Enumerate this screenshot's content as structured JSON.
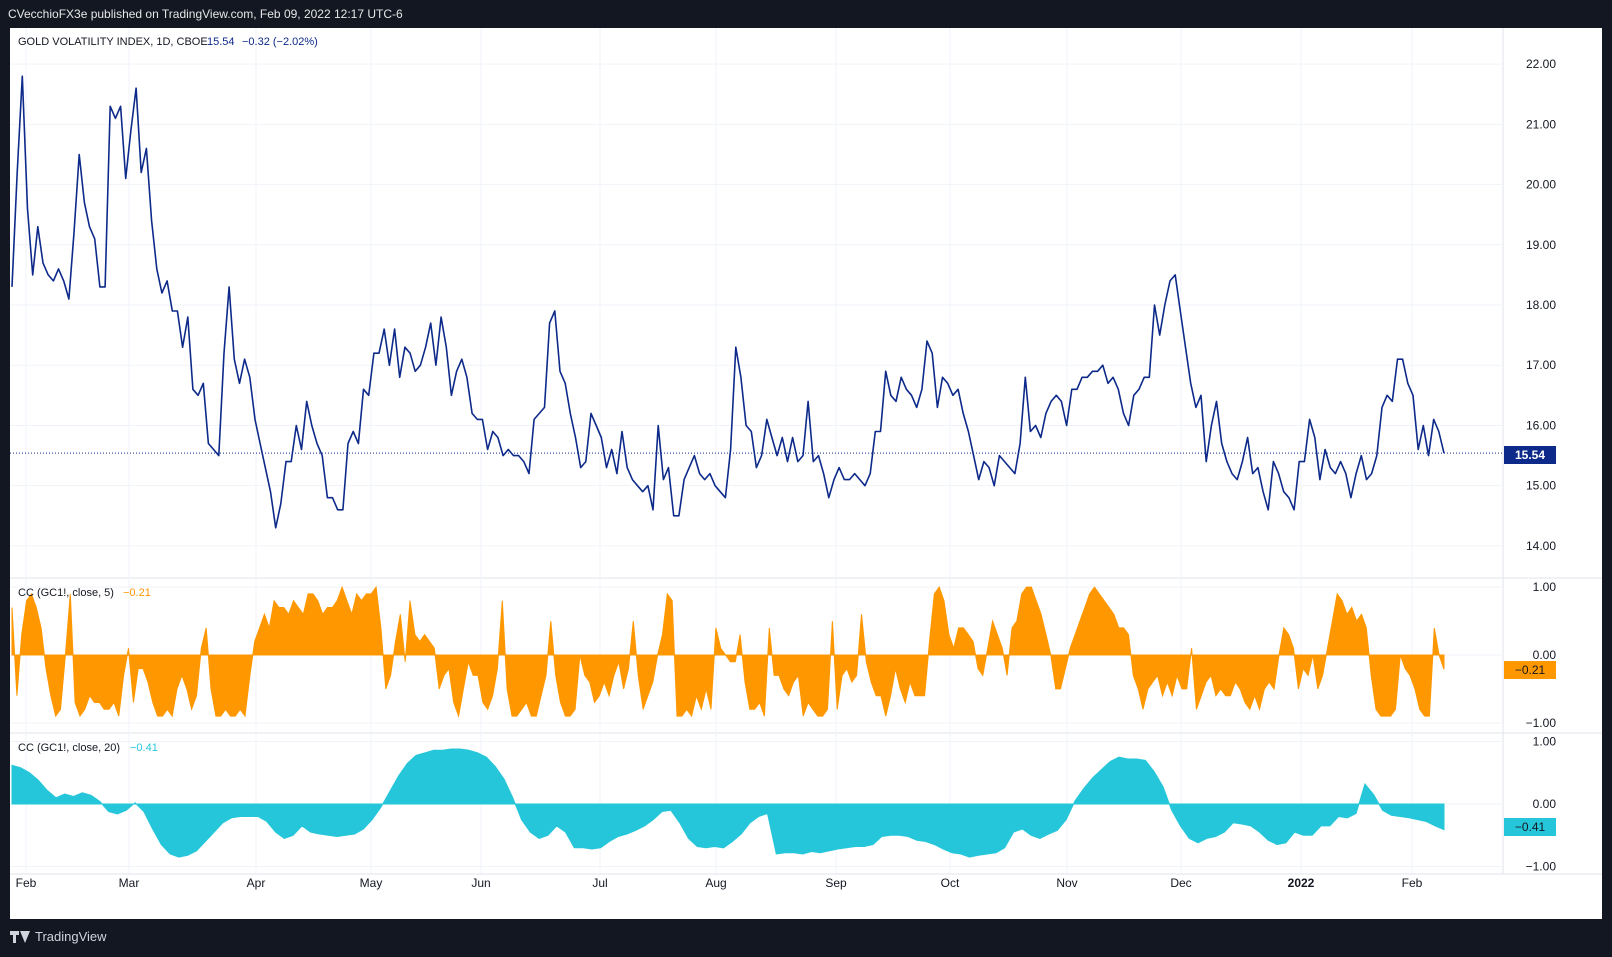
{
  "header": {
    "published_text": "CVecchioFX3e published on TradingView.com, Feb 09, 2022 12:17 UTC-6"
  },
  "footer": {
    "brand_label": "TradingView"
  },
  "colors": {
    "background": "#131722",
    "main_line": "#0d2a8a",
    "cc5": "#ff9800",
    "cc20": "#26c6da",
    "grid": "#f0f3fa",
    "text": "#131722"
  },
  "chart_data": [
    {
      "type": "line",
      "legend": {
        "symbol": "GOLD VOLATILITY INDEX, 1D, CBOE",
        "last": "15.54",
        "change": "−0.32 (−2.02%)"
      },
      "last_value_label": "15.54",
      "y_tick_labels": [
        "22.00",
        "21.00",
        "20.00",
        "19.00",
        "18.00",
        "17.00",
        "16.00",
        "15.00",
        "14.00"
      ],
      "ylim": [
        13.5,
        22.6
      ],
      "values": [
        18.3,
        20.2,
        21.8,
        19.6,
        18.5,
        19.3,
        18.7,
        18.5,
        18.4,
        18.6,
        18.4,
        18.1,
        19.2,
        20.5,
        19.7,
        19.3,
        19.1,
        18.3,
        18.3,
        21.3,
        21.1,
        21.3,
        20.1,
        20.9,
        21.6,
        20.2,
        20.6,
        19.4,
        18.6,
        18.2,
        18.4,
        17.9,
        17.9,
        17.3,
        17.8,
        16.6,
        16.5,
        16.7,
        15.7,
        15.6,
        15.5,
        17.2,
        18.3,
        17.1,
        16.7,
        17.1,
        16.8,
        16.1,
        15.7,
        15.3,
        14.9,
        14.3,
        14.7,
        15.4,
        15.4,
        16.0,
        15.6,
        16.4,
        16.0,
        15.7,
        15.5,
        14.8,
        14.8,
        14.6,
        14.6,
        15.7,
        15.9,
        15.7,
        16.6,
        16.5,
        17.2,
        17.2,
        17.6,
        17.0,
        17.6,
        16.8,
        17.3,
        17.2,
        16.9,
        17.0,
        17.3,
        17.7,
        17.0,
        17.8,
        17.3,
        16.5,
        16.9,
        17.1,
        16.8,
        16.2,
        16.1,
        16.1,
        15.6,
        15.9,
        15.8,
        15.5,
        15.6,
        15.5,
        15.5,
        15.4,
        15.2,
        16.1,
        16.2,
        16.3,
        17.7,
        17.9,
        16.9,
        16.7,
        16.2,
        15.8,
        15.3,
        15.4,
        16.2,
        16.0,
        15.8,
        15.3,
        15.6,
        15.2,
        15.9,
        15.3,
        15.1,
        15.0,
        14.9,
        15.0,
        14.6,
        16.0,
        15.1,
        15.3,
        14.5,
        14.5,
        15.1,
        15.3,
        15.5,
        15.2,
        15.1,
        15.2,
        15.0,
        14.9,
        14.8,
        15.6,
        17.3,
        16.8,
        16.0,
        15.9,
        15.3,
        15.5,
        16.1,
        15.8,
        15.5,
        15.8,
        15.4,
        15.8,
        15.4,
        15.5,
        16.4,
        15.4,
        15.5,
        15.2,
        14.8,
        15.1,
        15.3,
        15.1,
        15.1,
        15.2,
        15.1,
        15.0,
        15.2,
        15.9,
        15.9,
        16.9,
        16.5,
        16.4,
        16.8,
        16.6,
        16.5,
        16.3,
        16.6,
        17.4,
        17.2,
        16.3,
        16.8,
        16.7,
        16.5,
        16.6,
        16.2,
        15.9,
        15.5,
        15.1,
        15.4,
        15.3,
        15.0,
        15.5,
        15.4,
        15.3,
        15.2,
        15.7,
        16.8,
        15.9,
        16.0,
        15.8,
        16.2,
        16.4,
        16.5,
        16.4,
        16.0,
        16.6,
        16.6,
        16.8,
        16.8,
        16.9,
        16.9,
        17.0,
        16.7,
        16.8,
        16.6,
        16.2,
        16.0,
        16.5,
        16.6,
        16.8,
        16.8,
        18.0,
        17.5,
        18.0,
        18.4,
        18.5,
        17.9,
        17.3,
        16.7,
        16.3,
        16.5,
        15.4,
        16.0,
        16.4,
        15.7,
        15.4,
        15.2,
        15.1,
        15.4,
        15.8,
        15.2,
        15.3,
        14.9,
        14.6,
        15.4,
        15.2,
        14.9,
        14.8,
        14.6,
        15.4,
        15.4,
        16.1,
        15.8,
        15.1,
        15.6,
        15.3,
        15.2,
        15.4,
        15.2,
        14.8,
        15.2,
        15.5,
        15.1,
        15.2,
        15.5,
        16.3,
        16.5,
        16.4,
        17.1,
        17.1,
        16.7,
        16.5,
        15.6,
        16.0,
        15.5,
        16.1,
        15.9,
        15.54
      ]
    },
    {
      "type": "area",
      "legend": {
        "label": "CC (GC1!, close, 5)",
        "last": "−0.21"
      },
      "last_value_label": "−0.21",
      "y_tick_labels": [
        "1.00",
        "0.00",
        "−1.00"
      ],
      "ylim": [
        -1.12,
        1.12
      ],
      "values": [
        0.7,
        -0.6,
        0.3,
        0.8,
        0.9,
        0.7,
        0.4,
        -0.2,
        -0.6,
        -0.9,
        -0.8,
        0.0,
        0.9,
        -0.7,
        -0.9,
        -0.8,
        -0.6,
        -0.7,
        -0.7,
        -0.8,
        -0.8,
        -0.7,
        -0.9,
        -0.3,
        0.1,
        -0.7,
        -0.2,
        -0.2,
        -0.4,
        -0.7,
        -0.9,
        -0.9,
        -0.8,
        -0.9,
        -0.5,
        -0.3,
        -0.5,
        -0.8,
        -0.6,
        0.1,
        0.4,
        -0.5,
        -0.9,
        -0.9,
        -0.8,
        -0.9,
        -0.9,
        -0.8,
        -0.9,
        -0.3,
        0.2,
        0.4,
        0.6,
        0.4,
        0.8,
        0.7,
        0.7,
        0.6,
        0.8,
        0.7,
        0.6,
        0.9,
        0.9,
        0.8,
        0.6,
        0.7,
        0.7,
        0.8,
        1.0,
        0.8,
        0.6,
        0.9,
        0.8,
        0.9,
        0.9,
        1.0,
        0.4,
        -0.5,
        -0.3,
        0.2,
        0.6,
        -0.1,
        0.8,
        0.3,
        0.2,
        0.3,
        0.2,
        0.1,
        -0.5,
        -0.3,
        -0.2,
        -0.7,
        -0.9,
        -0.5,
        -0.1,
        -0.3,
        -0.3,
        -0.7,
        -0.8,
        -0.6,
        -0.2,
        0.8,
        -0.5,
        -0.9,
        -0.9,
        -0.8,
        -0.7,
        -0.9,
        -0.9,
        -0.6,
        -0.3,
        0.5,
        -0.3,
        -0.7,
        -0.9,
        -0.9,
        -0.8,
        0.0,
        -0.3,
        -0.4,
        -0.7,
        -0.6,
        -0.4,
        -0.6,
        -0.3,
        -0.1,
        -0.5,
        -0.2,
        0.5,
        -0.3,
        -0.8,
        -0.6,
        -0.4,
        0.0,
        0.3,
        0.9,
        0.8,
        -0.9,
        -0.9,
        -0.8,
        -0.9,
        -0.6,
        -0.8,
        -0.5,
        -0.8,
        0.4,
        0.1,
        0.0,
        -0.1,
        -0.1,
        0.3,
        -0.4,
        -0.8,
        -0.8,
        -0.7,
        -0.9,
        0.4,
        -0.3,
        -0.3,
        -0.5,
        -0.6,
        -0.4,
        -0.3,
        -0.9,
        -0.7,
        -0.8,
        -0.9,
        -0.9,
        -0.8,
        0.5,
        -0.8,
        -0.3,
        -0.2,
        -0.4,
        -0.3,
        0.6,
        -0.1,
        -0.4,
        -0.6,
        -0.6,
        -0.9,
        -0.6,
        -0.2,
        -0.5,
        -0.7,
        -0.4,
        -0.6,
        -0.6,
        -0.6,
        0.2,
        0.9,
        1.0,
        0.8,
        0.3,
        0.1,
        0.4,
        0.4,
        0.3,
        0.2,
        -0.2,
        -0.3,
        0.1,
        0.5,
        0.3,
        0.1,
        -0.3,
        0.4,
        0.5,
        0.9,
        1.0,
        1.0,
        0.8,
        0.6,
        0.3,
        0.0,
        -0.5,
        -0.5,
        -0.2,
        0.1,
        0.3,
        0.5,
        0.7,
        0.9,
        1.0,
        0.9,
        0.8,
        0.7,
        0.6,
        0.4,
        0.4,
        0.3,
        -0.3,
        -0.5,
        -0.8,
        -0.5,
        -0.4,
        -0.3,
        -0.6,
        -0.4,
        -0.6,
        -0.3,
        -0.5,
        -0.5,
        0.1,
        -0.8,
        -0.6,
        -0.4,
        -0.3,
        -0.6,
        -0.5,
        -0.6,
        -0.6,
        -0.4,
        -0.5,
        -0.7,
        -0.8,
        -0.6,
        -0.8,
        -0.5,
        -0.4,
        -0.5,
        0.0,
        0.4,
        0.3,
        0.1,
        -0.5,
        -0.2,
        -0.3,
        0.0,
        -0.5,
        -0.3,
        0.1,
        0.5,
        0.9,
        0.8,
        0.6,
        0.7,
        0.5,
        0.6,
        0.4,
        -0.3,
        -0.8,
        -0.9,
        -0.9,
        -0.9,
        -0.8,
        0.0,
        -0.2,
        -0.3,
        -0.5,
        -0.8,
        -0.9,
        -0.9,
        0.4,
        0.0,
        -0.21
      ]
    },
    {
      "type": "area",
      "legend": {
        "label": "CC (GC1!, close, 20)",
        "last": "−0.41"
      },
      "last_value_label": "−0.41",
      "y_tick_labels": [
        "1.00",
        "0.00",
        "−1.00"
      ],
      "ylim": [
        -1.12,
        1.12
      ],
      "values": [
        0.62,
        0.58,
        0.5,
        0.38,
        0.22,
        0.1,
        0.16,
        0.12,
        0.18,
        0.14,
        0.04,
        -0.12,
        -0.16,
        -0.1,
        0.02,
        -0.12,
        -0.4,
        -0.65,
        -0.8,
        -0.85,
        -0.82,
        -0.75,
        -0.6,
        -0.45,
        -0.3,
        -0.22,
        -0.2,
        -0.2,
        -0.2,
        -0.28,
        -0.45,
        -0.55,
        -0.5,
        -0.35,
        -0.45,
        -0.48,
        -0.5,
        -0.52,
        -0.5,
        -0.48,
        -0.4,
        -0.25,
        -0.05,
        0.2,
        0.45,
        0.65,
        0.78,
        0.82,
        0.86,
        0.86,
        0.88,
        0.88,
        0.86,
        0.82,
        0.75,
        0.6,
        0.4,
        0.1,
        -0.25,
        -0.45,
        -0.55,
        -0.5,
        -0.35,
        -0.45,
        -0.7,
        -0.7,
        -0.72,
        -0.7,
        -0.6,
        -0.52,
        -0.48,
        -0.42,
        -0.35,
        -0.25,
        -0.12,
        -0.1,
        -0.3,
        -0.55,
        -0.68,
        -0.7,
        -0.68,
        -0.7,
        -0.6,
        -0.48,
        -0.3,
        -0.2,
        -0.15,
        -0.8,
        -0.78,
        -0.78,
        -0.8,
        -0.76,
        -0.78,
        -0.75,
        -0.72,
        -0.7,
        -0.68,
        -0.68,
        -0.65,
        -0.52,
        -0.5,
        -0.5,
        -0.52,
        -0.58,
        -0.6,
        -0.65,
        -0.72,
        -0.78,
        -0.8,
        -0.85,
        -0.82,
        -0.8,
        -0.78,
        -0.7,
        -0.45,
        -0.4,
        -0.5,
        -0.55,
        -0.48,
        -0.42,
        -0.25,
        0.05,
        0.25,
        0.42,
        0.55,
        0.68,
        0.75,
        0.72,
        0.72,
        0.7,
        0.52,
        0.28,
        -0.1,
        -0.35,
        -0.55,
        -0.62,
        -0.55,
        -0.52,
        -0.45,
        -0.3,
        -0.32,
        -0.35,
        -0.45,
        -0.58,
        -0.65,
        -0.62,
        -0.45,
        -0.5,
        -0.5,
        -0.35,
        -0.35,
        -0.2,
        -0.22,
        -0.15,
        0.32,
        0.15,
        -0.1,
        -0.18,
        -0.2,
        -0.22,
        -0.25,
        -0.28,
        -0.35,
        -0.41
      ]
    }
  ],
  "x_axis": {
    "tick_labels": [
      "Feb",
      "Mar",
      "Apr",
      "May",
      "Jun",
      "Jul",
      "Aug",
      "Sep",
      "Oct",
      "Nov",
      "Dec",
      "2022",
      "Feb"
    ]
  }
}
